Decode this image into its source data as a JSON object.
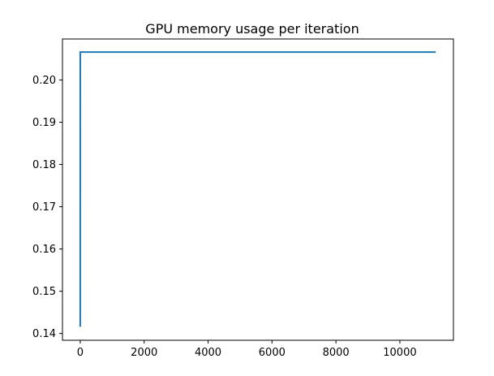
{
  "chart_data": {
    "type": "line",
    "title": "GPU memory usage per iteration",
    "xlabel": "",
    "ylabel": "",
    "xlim": [
      -556,
      11676
    ],
    "ylim": [
      0.1384,
      0.2097
    ],
    "x_ticks": [
      0,
      2000,
      4000,
      6000,
      8000,
      10000
    ],
    "x_tick_labels": [
      "0",
      "2000",
      "4000",
      "6000",
      "8000",
      "10000"
    ],
    "y_ticks": [
      0.14,
      0.15,
      0.16,
      0.17,
      0.18,
      0.19,
      0.2
    ],
    "y_tick_labels": [
      "0.14",
      "0.15",
      "0.16",
      "0.17",
      "0.18",
      "0.19",
      "0.20"
    ],
    "grid": false,
    "series": [
      {
        "color": "#1f77b4",
        "x": [
          0,
          1,
          11120
        ],
        "y": [
          0.1416,
          0.2066,
          0.2066
        ]
      }
    ]
  }
}
